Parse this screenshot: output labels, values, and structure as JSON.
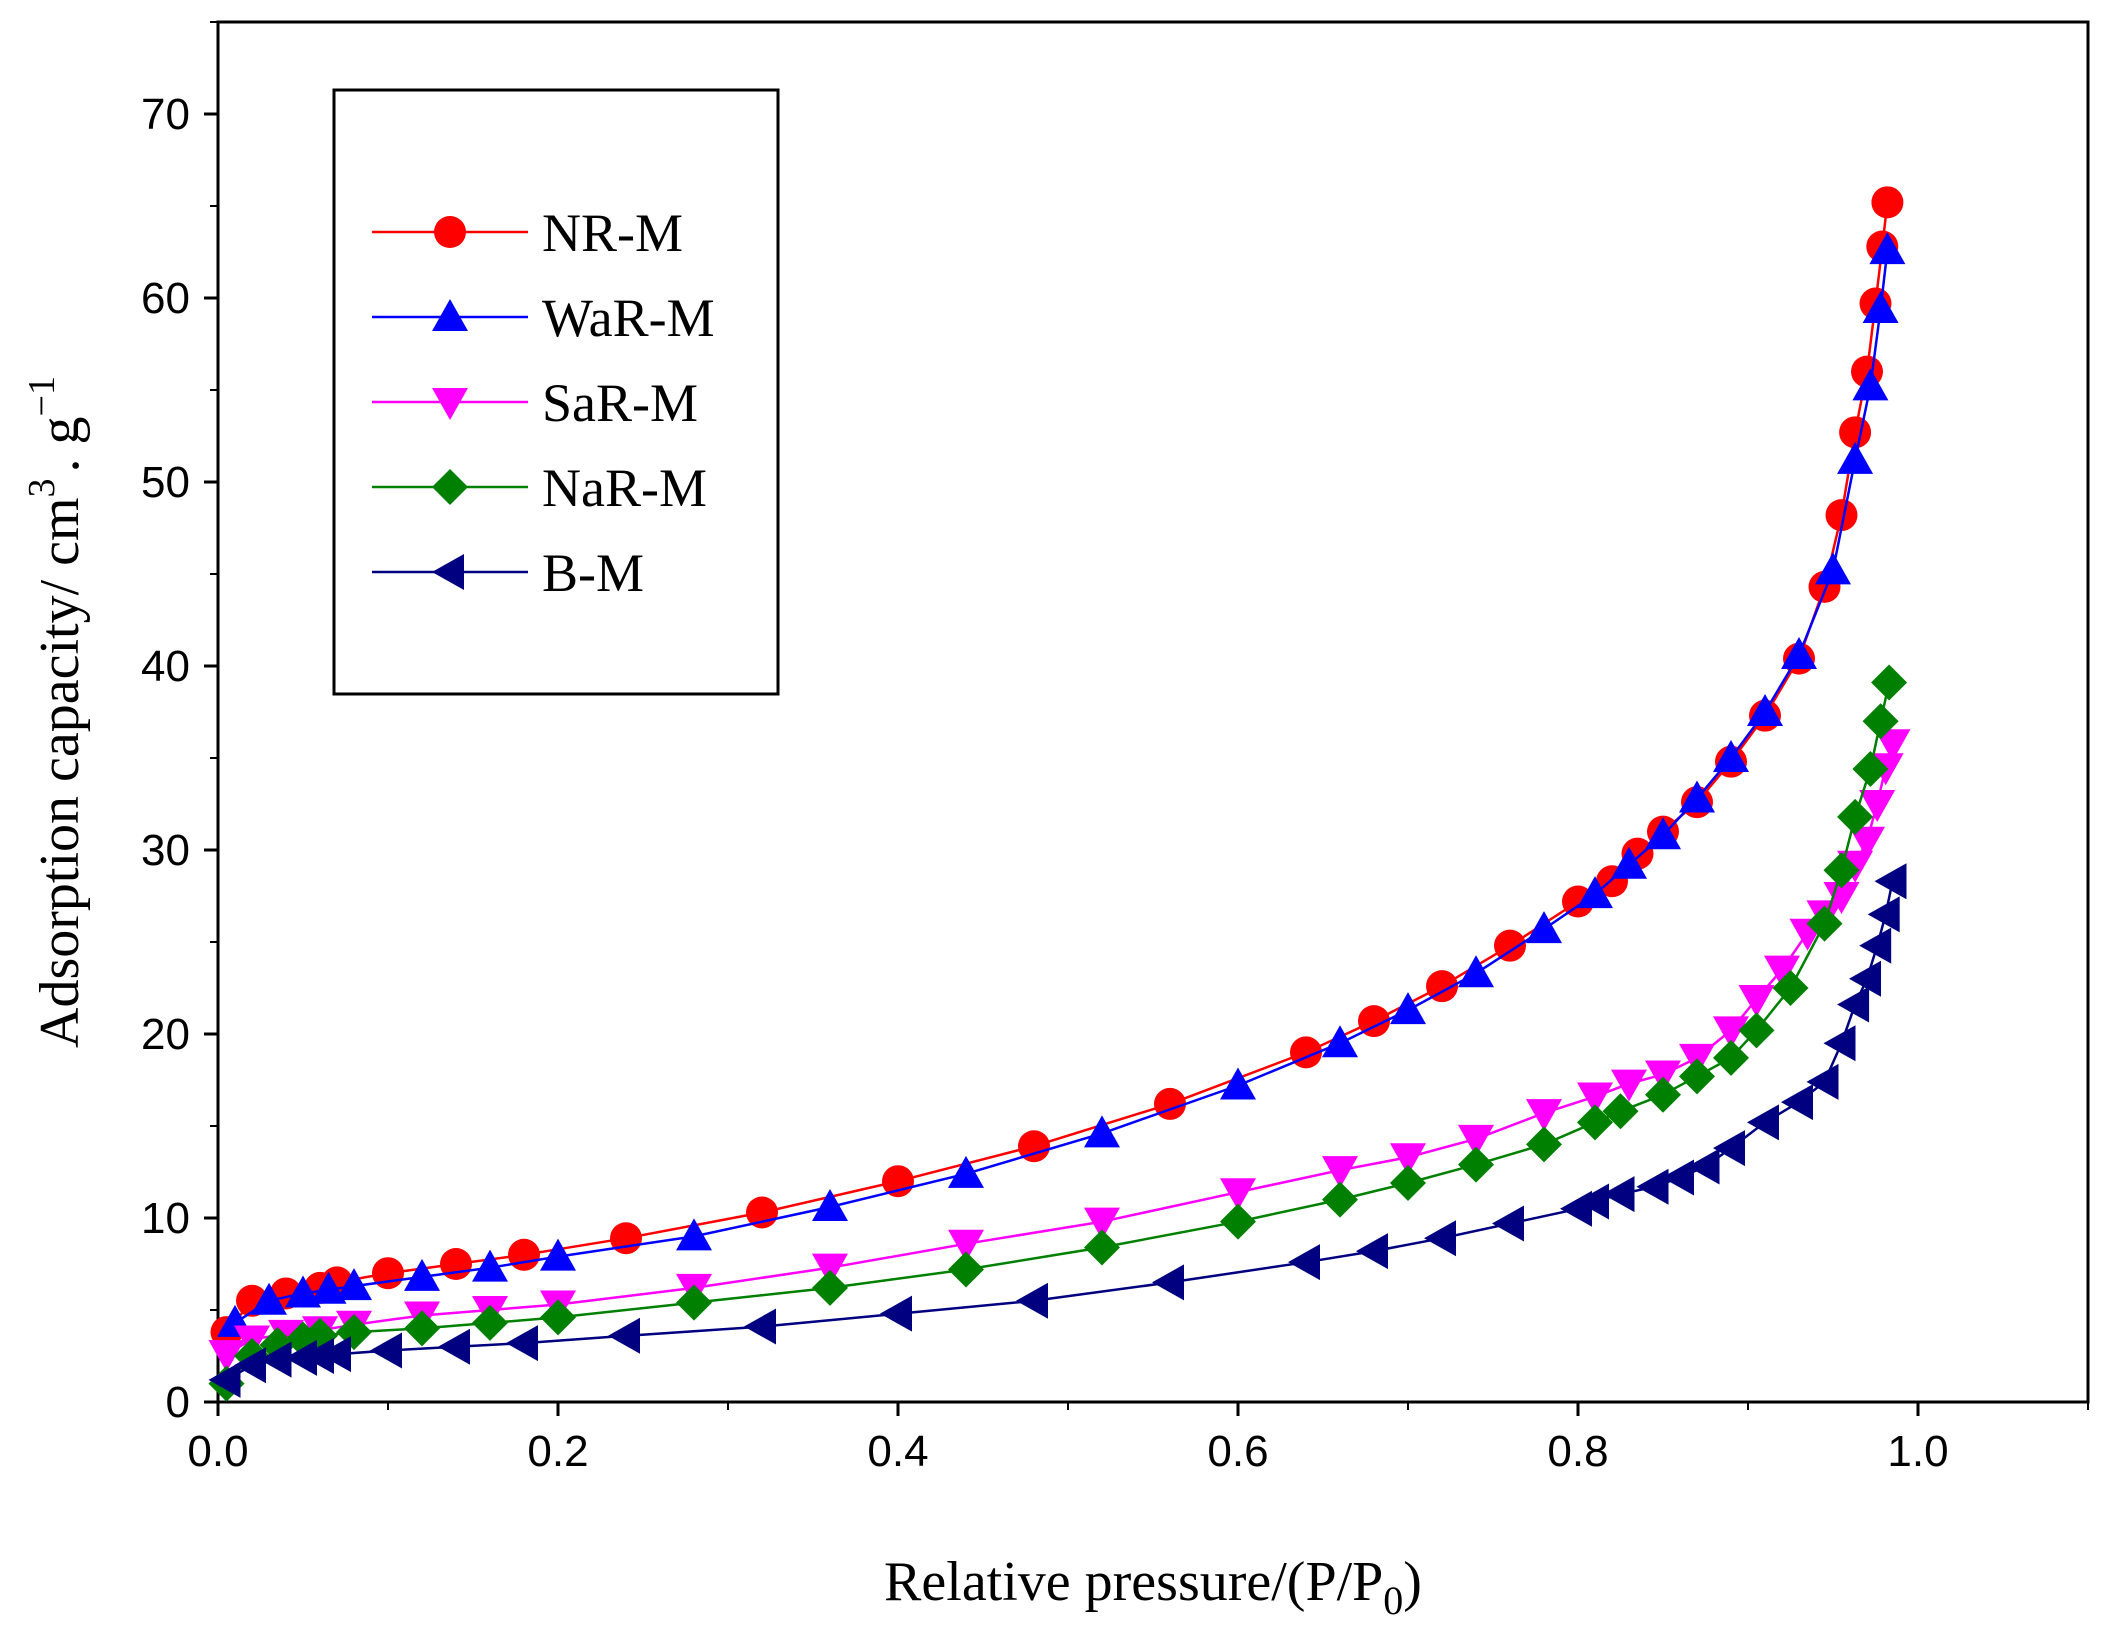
{
  "chart_data": {
    "type": "line",
    "xlabel": "Relative pressure/(P/P",
    "xlabel_sub": "0",
    "xlabel_close": ")",
    "ylabel": "Adsorption capacity/ cm",
    "ylabel_sup1": "3",
    "ylabel_mid": ". g",
    "ylabel_sup2": "−1",
    "xlim": [
      0.0,
      1.1
    ],
    "ylim": [
      0,
      75
    ],
    "x_ticks": [
      "0.0",
      "0.2",
      "0.4",
      "0.6",
      "0.8",
      "1.0"
    ],
    "y_ticks": [
      "0",
      "10",
      "20",
      "30",
      "40",
      "50",
      "60",
      "70"
    ],
    "grid": false,
    "legend_position": "top-left",
    "series": [
      {
        "name": "NR-M",
        "color": "#ff0000",
        "marker": "circle",
        "x": [
          0.005,
          0.02,
          0.04,
          0.06,
          0.07,
          0.1,
          0.14,
          0.18,
          0.24,
          0.32,
          0.4,
          0.48,
          0.56,
          0.64,
          0.68,
          0.72,
          0.76,
          0.8,
          0.82,
          0.835,
          0.85,
          0.87,
          0.89,
          0.91,
          0.93,
          0.945,
          0.955,
          0.963,
          0.97,
          0.975,
          0.979,
          0.982
        ],
        "y": [
          3.8,
          5.5,
          5.9,
          6.2,
          6.5,
          7.0,
          7.5,
          8.0,
          8.9,
          10.3,
          12.0,
          13.9,
          16.2,
          19.0,
          20.7,
          22.6,
          24.8,
          27.2,
          28.3,
          29.8,
          31.0,
          32.6,
          34.8,
          37.3,
          40.4,
          44.3,
          48.2,
          52.7,
          56.0,
          59.7,
          62.8,
          65.2
        ]
      },
      {
        "name": "WaR-M",
        "color": "#0000ff",
        "marker": "triangle-up",
        "x": [
          0.01,
          0.03,
          0.05,
          0.065,
          0.08,
          0.12,
          0.16,
          0.2,
          0.28,
          0.36,
          0.44,
          0.52,
          0.6,
          0.66,
          0.7,
          0.74,
          0.78,
          0.81,
          0.83,
          0.85,
          0.87,
          0.89,
          0.91,
          0.93,
          0.95,
          0.963,
          0.972,
          0.978,
          0.982
        ],
        "y": [
          4.3,
          5.5,
          5.9,
          6.1,
          6.3,
          6.8,
          7.3,
          7.9,
          9.0,
          10.6,
          12.4,
          14.6,
          17.2,
          19.5,
          21.3,
          23.3,
          25.7,
          27.6,
          29.2,
          30.8,
          32.8,
          35.0,
          37.5,
          40.6,
          45.2,
          51.2,
          55.2,
          59.4,
          62.6
        ]
      },
      {
        "name": "SaR-M",
        "color": "#ff00ff",
        "marker": "triangle-down",
        "x": [
          0.005,
          0.02,
          0.04,
          0.06,
          0.08,
          0.12,
          0.16,
          0.2,
          0.28,
          0.36,
          0.44,
          0.52,
          0.6,
          0.66,
          0.7,
          0.74,
          0.78,
          0.81,
          0.83,
          0.85,
          0.87,
          0.89,
          0.905,
          0.92,
          0.935,
          0.945,
          0.955,
          0.963,
          0.97,
          0.976,
          0.981,
          0.985
        ],
        "y": [
          2.6,
          3.4,
          3.7,
          3.9,
          4.2,
          4.7,
          5.0,
          5.3,
          6.2,
          7.3,
          8.6,
          9.8,
          11.4,
          12.6,
          13.3,
          14.3,
          15.7,
          16.6,
          17.3,
          17.8,
          18.7,
          20.2,
          21.9,
          23.5,
          25.5,
          26.5,
          27.5,
          29.2,
          30.5,
          32.5,
          34.5,
          35.8
        ]
      },
      {
        "name": "NaR-M",
        "color": "#008000",
        "marker": "diamond",
        "x": [
          0.005,
          0.02,
          0.035,
          0.05,
          0.06,
          0.08,
          0.12,
          0.16,
          0.2,
          0.28,
          0.36,
          0.44,
          0.52,
          0.6,
          0.66,
          0.7,
          0.74,
          0.78,
          0.81,
          0.825,
          0.85,
          0.87,
          0.89,
          0.905,
          0.925,
          0.945,
          0.955,
          0.963,
          0.972,
          0.978,
          0.983
        ],
        "y": [
          1.0,
          2.5,
          3.1,
          3.4,
          3.6,
          3.8,
          4.0,
          4.3,
          4.6,
          5.4,
          6.2,
          7.2,
          8.4,
          9.8,
          11.0,
          11.9,
          12.9,
          14.0,
          15.2,
          15.8,
          16.7,
          17.7,
          18.7,
          20.2,
          22.5,
          26.0,
          28.9,
          31.8,
          34.4,
          37.0,
          39.1
        ]
      },
      {
        "name": "B-M",
        "color": "#000080",
        "marker": "triangle-left",
        "x": [
          0.005,
          0.02,
          0.035,
          0.05,
          0.06,
          0.07,
          0.1,
          0.14,
          0.18,
          0.24,
          0.32,
          0.4,
          0.48,
          0.56,
          0.64,
          0.68,
          0.72,
          0.76,
          0.8,
          0.81,
          0.825,
          0.845,
          0.86,
          0.875,
          0.89,
          0.91,
          0.93,
          0.945,
          0.955,
          0.963,
          0.97,
          0.976,
          0.981,
          0.985
        ],
        "y": [
          1.2,
          2.0,
          2.3,
          2.4,
          2.5,
          2.6,
          2.8,
          3.0,
          3.2,
          3.6,
          4.1,
          4.8,
          5.5,
          6.5,
          7.6,
          8.2,
          8.9,
          9.7,
          10.5,
          10.9,
          11.3,
          11.7,
          12.2,
          12.8,
          13.8,
          15.2,
          16.3,
          17.4,
          19.5,
          21.6,
          23.0,
          24.8,
          26.5,
          28.3
        ]
      }
    ]
  }
}
